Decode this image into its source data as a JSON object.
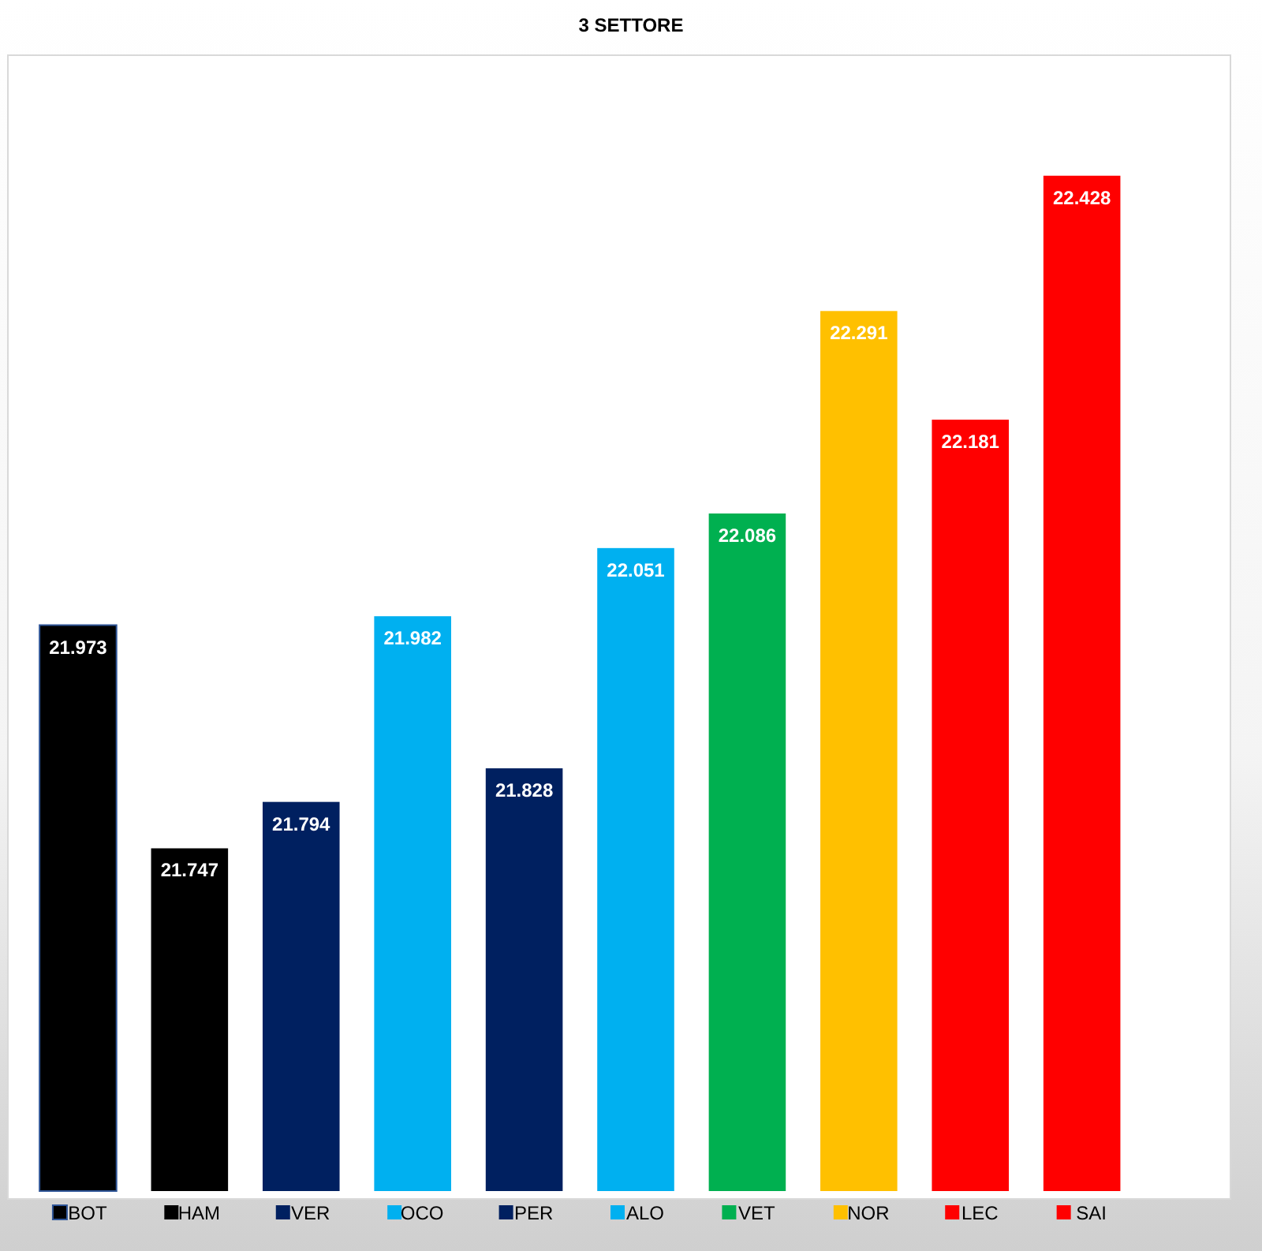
{
  "chart_data": {
    "type": "bar",
    "title": "3 SETTORE",
    "categories": [
      "BOT",
      "HAM",
      "VER",
      "OCO",
      "PER",
      "ALO",
      "VET",
      "NOR",
      "LEC",
      "SAI"
    ],
    "values": [
      21.973,
      21.747,
      21.794,
      21.982,
      21.828,
      22.051,
      22.086,
      22.291,
      22.181,
      22.428
    ],
    "colors": [
      "#000000",
      "#000000",
      "#002060",
      "#00b0f0",
      "#002060",
      "#00b0f0",
      "#00b050",
      "#ffc000",
      "#ff0000",
      "#ff0000"
    ],
    "ylim": [
      21.4,
      22.55
    ],
    "data_labels": true,
    "tick_labels": "x",
    "grid": false
  }
}
